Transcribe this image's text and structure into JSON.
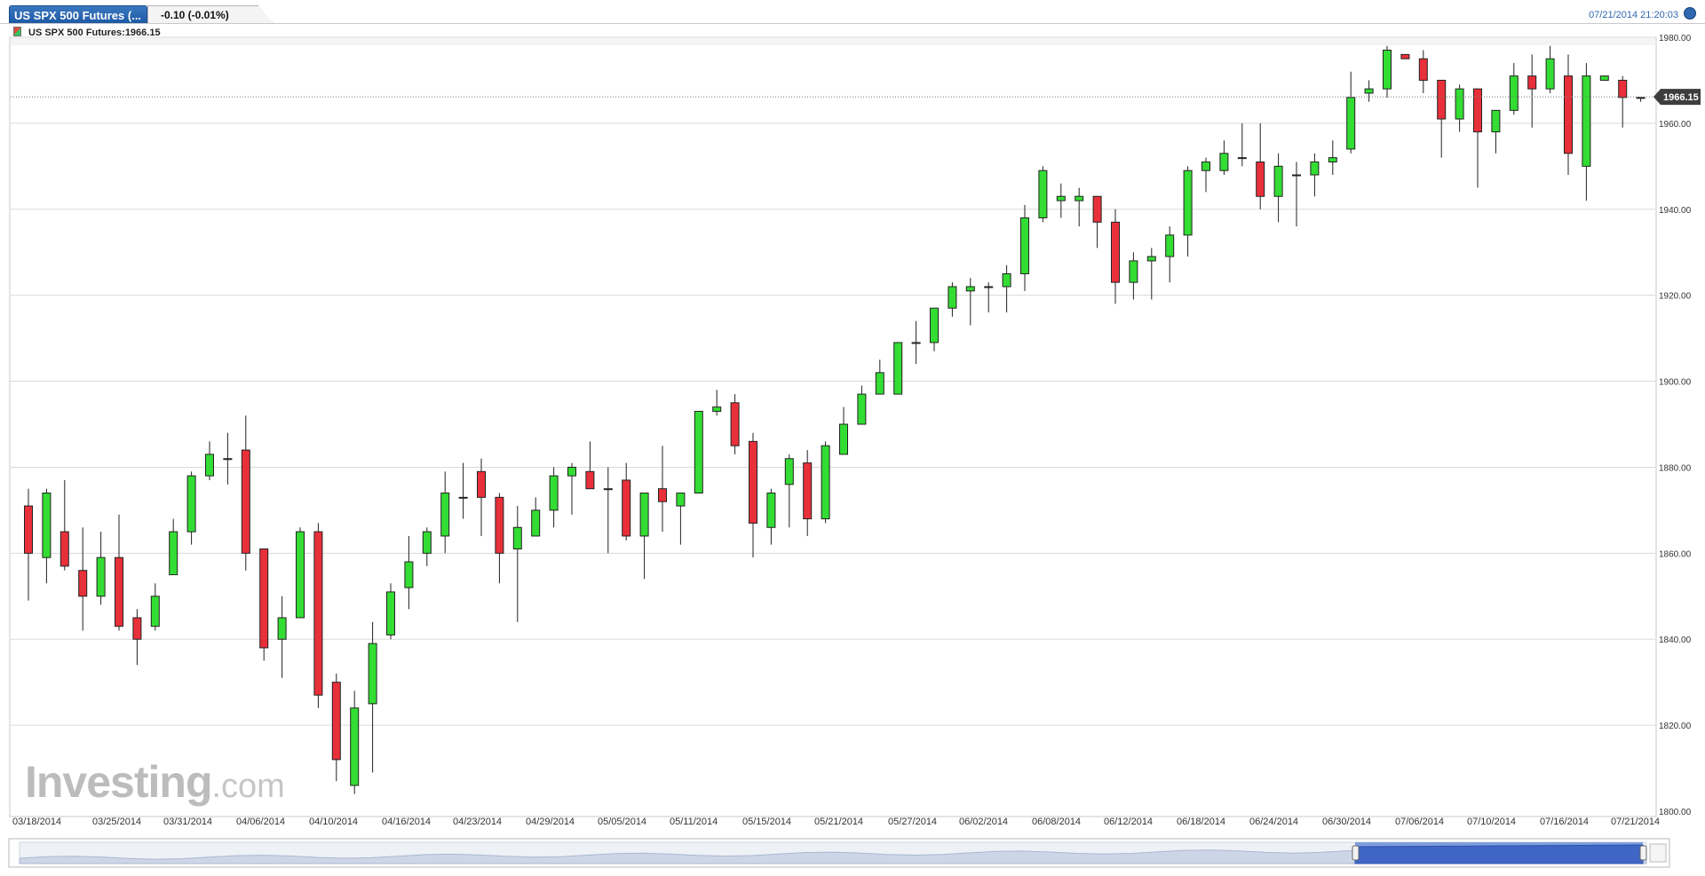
{
  "tab": {
    "title": "US SPX 500 Futures (...",
    "change": "-0.10 (-0.01%)"
  },
  "timestamp": "07/21/2014 21:20:03",
  "legend": {
    "label": "US SPX 500 Futures:1966.15"
  },
  "watermark": {
    "main": "Investing",
    "suffix": ".com"
  },
  "colors": {
    "up": "#33dd33",
    "down": "#e8303a",
    "grid": "#dadada",
    "price_tag": "#3d3d3d",
    "navigator": "#6a8fd6"
  },
  "chart_data": {
    "type": "candlestick",
    "title": "",
    "xlabel": "",
    "ylabel": "",
    "ylim": [
      1800,
      1980
    ],
    "yticks": [
      "1800.00",
      "1820.00",
      "1840.00",
      "1860.00",
      "1880.00",
      "1900.00",
      "1920.00",
      "1940.00",
      "1960.00",
      "1980.00"
    ],
    "xticks": [
      "03/18/2014",
      "03/25/2014",
      "03/31/2014",
      "04/06/2014",
      "04/10/2014",
      "04/16/2014",
      "04/23/2014",
      "04/29/2014",
      "05/05/2014",
      "05/11/2014",
      "05/15/2014",
      "05/21/2014",
      "05/27/2014",
      "06/02/2014",
      "06/08/2014",
      "06/12/2014",
      "06/18/2014",
      "06/24/2014",
      "06/30/2014",
      "07/06/2014",
      "07/10/2014",
      "07/16/2014",
      "07/21/2014"
    ],
    "last_price": "1966.15",
    "last_value": 1966.15,
    "candles": [
      {
        "o": 1871,
        "h": 1875,
        "l": 1849,
        "c": 1860
      },
      {
        "o": 1859,
        "h": 1875,
        "l": 1853,
        "c": 1874
      },
      {
        "o": 1865,
        "h": 1877,
        "l": 1856,
        "c": 1857
      },
      {
        "o": 1856,
        "h": 1866,
        "l": 1842,
        "c": 1850
      },
      {
        "o": 1850,
        "h": 1865,
        "l": 1848,
        "c": 1859
      },
      {
        "o": 1859,
        "h": 1869,
        "l": 1842,
        "c": 1843
      },
      {
        "o": 1845,
        "h": 1847,
        "l": 1834,
        "c": 1840
      },
      {
        "o": 1843,
        "h": 1853,
        "l": 1842,
        "c": 1850
      },
      {
        "o": 1855,
        "h": 1868,
        "l": 1855,
        "c": 1865
      },
      {
        "o": 1865,
        "h": 1879,
        "l": 1862,
        "c": 1878
      },
      {
        "o": 1878,
        "h": 1886,
        "l": 1877,
        "c": 1883
      },
      {
        "o": 1882,
        "h": 1888,
        "l": 1876,
        "c": 1882
      },
      {
        "o": 1884,
        "h": 1892,
        "l": 1856,
        "c": 1860
      },
      {
        "o": 1861,
        "h": 1861,
        "l": 1835,
        "c": 1838
      },
      {
        "o": 1840,
        "h": 1850,
        "l": 1831,
        "c": 1845
      },
      {
        "o": 1845,
        "h": 1866,
        "l": 1845,
        "c": 1865
      },
      {
        "o": 1865,
        "h": 1867,
        "l": 1824,
        "c": 1827
      },
      {
        "o": 1830,
        "h": 1832,
        "l": 1807,
        "c": 1812
      },
      {
        "o": 1806,
        "h": 1828,
        "l": 1804,
        "c": 1824
      },
      {
        "o": 1825,
        "h": 1844,
        "l": 1809,
        "c": 1839
      },
      {
        "o": 1841,
        "h": 1853,
        "l": 1840,
        "c": 1851
      },
      {
        "o": 1852,
        "h": 1864,
        "l": 1847,
        "c": 1858
      },
      {
        "o": 1860,
        "h": 1866,
        "l": 1857,
        "c": 1865
      },
      {
        "o": 1864,
        "h": 1879,
        "l": 1860,
        "c": 1874
      },
      {
        "o": 1873,
        "h": 1881,
        "l": 1868,
        "c": 1873
      },
      {
        "o": 1879,
        "h": 1882,
        "l": 1864,
        "c": 1873
      },
      {
        "o": 1873,
        "h": 1874,
        "l": 1853,
        "c": 1860
      },
      {
        "o": 1861,
        "h": 1871,
        "l": 1844,
        "c": 1866
      },
      {
        "o": 1864,
        "h": 1873,
        "l": 1864,
        "c": 1870
      },
      {
        "o": 1870,
        "h": 1880,
        "l": 1866,
        "c": 1878
      },
      {
        "o": 1878,
        "h": 1881,
        "l": 1869,
        "c": 1880
      },
      {
        "o": 1879,
        "h": 1886,
        "l": 1876,
        "c": 1875
      },
      {
        "o": 1875,
        "h": 1880,
        "l": 1860,
        "c": 1875
      },
      {
        "o": 1877,
        "h": 1881,
        "l": 1863,
        "c": 1864
      },
      {
        "o": 1864,
        "h": 1873,
        "l": 1854,
        "c": 1874
      },
      {
        "o": 1875,
        "h": 1885,
        "l": 1865,
        "c": 1872
      },
      {
        "o": 1871,
        "h": 1874,
        "l": 1862,
        "c": 1874
      },
      {
        "o": 1874,
        "h": 1893,
        "l": 1874,
        "c": 1893
      },
      {
        "o": 1893,
        "h": 1898,
        "l": 1892,
        "c": 1894
      },
      {
        "o": 1895,
        "h": 1897,
        "l": 1883,
        "c": 1885
      },
      {
        "o": 1886,
        "h": 1888,
        "l": 1859,
        "c": 1867
      },
      {
        "o": 1866,
        "h": 1875,
        "l": 1862,
        "c": 1874
      },
      {
        "o": 1876,
        "h": 1883,
        "l": 1866,
        "c": 1882
      },
      {
        "o": 1881,
        "h": 1884,
        "l": 1864,
        "c": 1868
      },
      {
        "o": 1868,
        "h": 1886,
        "l": 1867,
        "c": 1885
      },
      {
        "o": 1883,
        "h": 1894,
        "l": 1883,
        "c": 1890
      },
      {
        "o": 1890,
        "h": 1899,
        "l": 1890,
        "c": 1897
      },
      {
        "o": 1897,
        "h": 1905,
        "l": 1897,
        "c": 1902
      },
      {
        "o": 1897,
        "h": 1909,
        "l": 1897,
        "c": 1909
      },
      {
        "o": 1909,
        "h": 1914,
        "l": 1904,
        "c": 1909
      },
      {
        "o": 1909,
        "h": 1917,
        "l": 1907,
        "c": 1917
      },
      {
        "o": 1917,
        "h": 1923,
        "l": 1915,
        "c": 1922
      },
      {
        "o": 1921,
        "h": 1924,
        "l": 1913,
        "c": 1922
      },
      {
        "o": 1922,
        "h": 1923,
        "l": 1916,
        "c": 1922
      },
      {
        "o": 1922,
        "h": 1927,
        "l": 1916,
        "c": 1925
      },
      {
        "o": 1925,
        "h": 1941,
        "l": 1921,
        "c": 1938
      },
      {
        "o": 1938,
        "h": 1950,
        "l": 1937,
        "c": 1949
      },
      {
        "o": 1942,
        "h": 1946,
        "l": 1938,
        "c": 1943
      },
      {
        "o": 1942,
        "h": 1945,
        "l": 1936,
        "c": 1943
      },
      {
        "o": 1943,
        "h": 1943,
        "l": 1931,
        "c": 1937
      },
      {
        "o": 1937,
        "h": 1940,
        "l": 1918,
        "c": 1923
      },
      {
        "o": 1923,
        "h": 1930,
        "l": 1919,
        "c": 1928
      },
      {
        "o": 1928,
        "h": 1931,
        "l": 1919,
        "c": 1929
      },
      {
        "o": 1929,
        "h": 1936,
        "l": 1923,
        "c": 1934
      },
      {
        "o": 1934,
        "h": 1950,
        "l": 1929,
        "c": 1949
      },
      {
        "o": 1949,
        "h": 1952,
        "l": 1944,
        "c": 1951
      },
      {
        "o": 1949,
        "h": 1956,
        "l": 1948,
        "c": 1953
      },
      {
        "o": 1952,
        "h": 1960,
        "l": 1950,
        "c": 1952
      },
      {
        "o": 1951,
        "h": 1960,
        "l": 1940,
        "c": 1943
      },
      {
        "o": 1943,
        "h": 1953,
        "l": 1937,
        "c": 1950
      },
      {
        "o": 1948,
        "h": 1951,
        "l": 1936,
        "c": 1948
      },
      {
        "o": 1948,
        "h": 1953,
        "l": 1943,
        "c": 1951
      },
      {
        "o": 1951,
        "h": 1956,
        "l": 1948,
        "c": 1952
      },
      {
        "o": 1954,
        "h": 1972,
        "l": 1953,
        "c": 1966
      },
      {
        "o": 1967,
        "h": 1970,
        "l": 1965,
        "c": 1968
      },
      {
        "o": 1968,
        "h": 1978,
        "l": 1966,
        "c": 1977
      },
      {
        "o": 1976,
        "h": 1976,
        "l": 1975,
        "c": 1975
      },
      {
        "o": 1975,
        "h": 1977,
        "l": 1967,
        "c": 1970
      },
      {
        "o": 1970,
        "h": 1970,
        "l": 1952,
        "c": 1961
      },
      {
        "o": 1961,
        "h": 1969,
        "l": 1958,
        "c": 1968
      },
      {
        "o": 1968,
        "h": 1968,
        "l": 1945,
        "c": 1958
      },
      {
        "o": 1958,
        "h": 1963,
        "l": 1953,
        "c": 1963
      },
      {
        "o": 1963,
        "h": 1974,
        "l": 1962,
        "c": 1971
      },
      {
        "o": 1971,
        "h": 1976,
        "l": 1959,
        "c": 1968
      },
      {
        "o": 1968,
        "h": 1978,
        "l": 1967,
        "c": 1975
      },
      {
        "o": 1971,
        "h": 1976,
        "l": 1948,
        "c": 1953
      },
      {
        "o": 1950,
        "h": 1974,
        "l": 1942,
        "c": 1971
      },
      {
        "o": 1970,
        "h": 1971,
        "l": 1970,
        "c": 1971
      },
      {
        "o": 1970,
        "h": 1971,
        "l": 1959,
        "c": 1966
      },
      {
        "o": 1966,
        "h": 1966,
        "l": 1965,
        "c": 1966
      }
    ]
  }
}
